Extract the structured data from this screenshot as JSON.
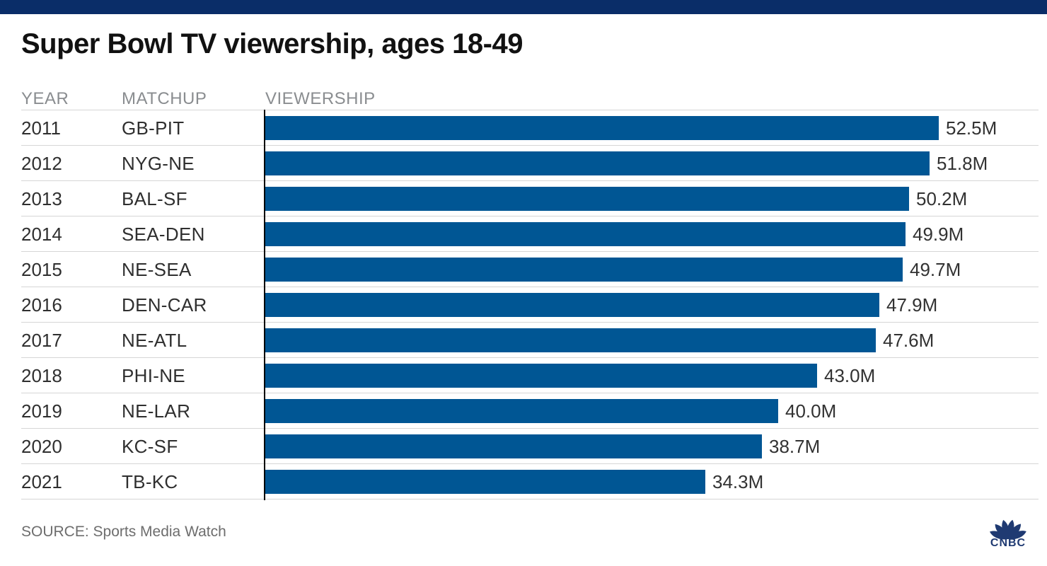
{
  "title": "Super Bowl TV viewership, ages 18-49",
  "table": {
    "columns": [
      "YEAR",
      "MATCHUP",
      "VIEWERSHIP"
    ]
  },
  "chart_data": {
    "type": "bar",
    "orientation": "horizontal",
    "title": "Super Bowl TV viewership, ages 18-49",
    "categories": [
      "2011",
      "2012",
      "2013",
      "2014",
      "2015",
      "2016",
      "2017",
      "2018",
      "2019",
      "2020",
      "2021"
    ],
    "matchups": [
      "GB-PIT",
      "NYG-NE",
      "BAL-SF",
      "SEA-DEN",
      "NE-SEA",
      "DEN-CAR",
      "NE-ATL",
      "PHI-NE",
      "NE-LAR",
      "KC-SF",
      "TB-KC"
    ],
    "values": [
      52.5,
      51.8,
      50.2,
      49.9,
      49.7,
      47.9,
      47.6,
      43.0,
      40.0,
      38.7,
      34.3
    ],
    "value_labels": [
      "52.5M",
      "51.8M",
      "50.2M",
      "49.9M",
      "49.7M",
      "47.9M",
      "47.6M",
      "43.0M",
      "40.0M",
      "38.7M",
      "34.3M"
    ],
    "value_suffix": "M",
    "xlim": [
      0,
      59.3
    ],
    "grid": false,
    "legend": false
  },
  "footer": {
    "source": "SOURCE: Sports Media Watch",
    "logo_text": "CNBC"
  },
  "colors": {
    "top_stripe": "#0a2d68",
    "bar": "#005694",
    "separator": "#d6d6d6",
    "header_text": "#8a8d90",
    "axis": "#000000",
    "logo": "#1f3a72"
  }
}
